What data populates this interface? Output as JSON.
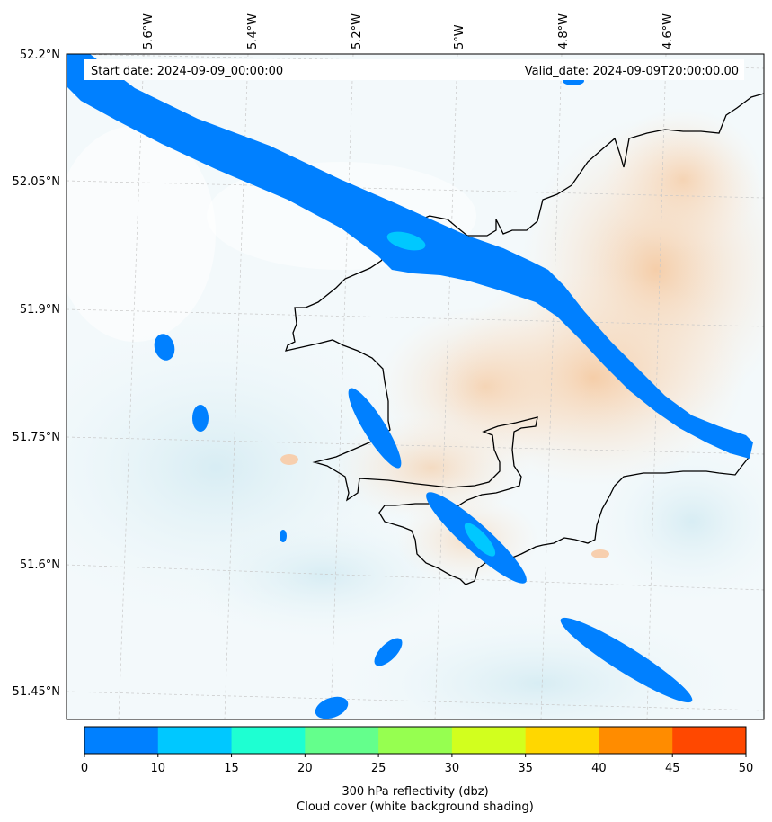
{
  "map": {
    "start_date_label": "Start date: 2024-09-09_00:00:00",
    "valid_date_label": "Valid_date: 2024-09-09T20:00:00.00",
    "lon_labels": [
      "5.6°W",
      "5.4°W",
      "5.2°W",
      "5°W",
      "4.8°W",
      "4.6°W"
    ],
    "lat_labels": [
      "52.2°N",
      "52.05°N",
      "51.9°N",
      "51.75°N",
      "51.6°N",
      "51.45°N"
    ]
  },
  "colorbar": {
    "ticks": [
      "0",
      "10",
      "15",
      "20",
      "25",
      "30",
      "35",
      "40",
      "45",
      "50"
    ],
    "colors": [
      "#0080ff",
      "#00c8ff",
      "#1effd2",
      "#64ff8c",
      "#96ff50",
      "#d2ff1e",
      "#ffd700",
      "#ff8c00",
      "#ff4800"
    ],
    "label_line1": "300 hPa reflectivity (dbz)",
    "label_line2": "Cloud cover (white background shading)"
  },
  "styles": {
    "reflectivity_low": "#0080ff",
    "reflectivity_mid": "#00c8ff",
    "cloud_blue": "#d9eef5",
    "cloud_warm": "#f7d9bd",
    "coastline": "#000000"
  }
}
